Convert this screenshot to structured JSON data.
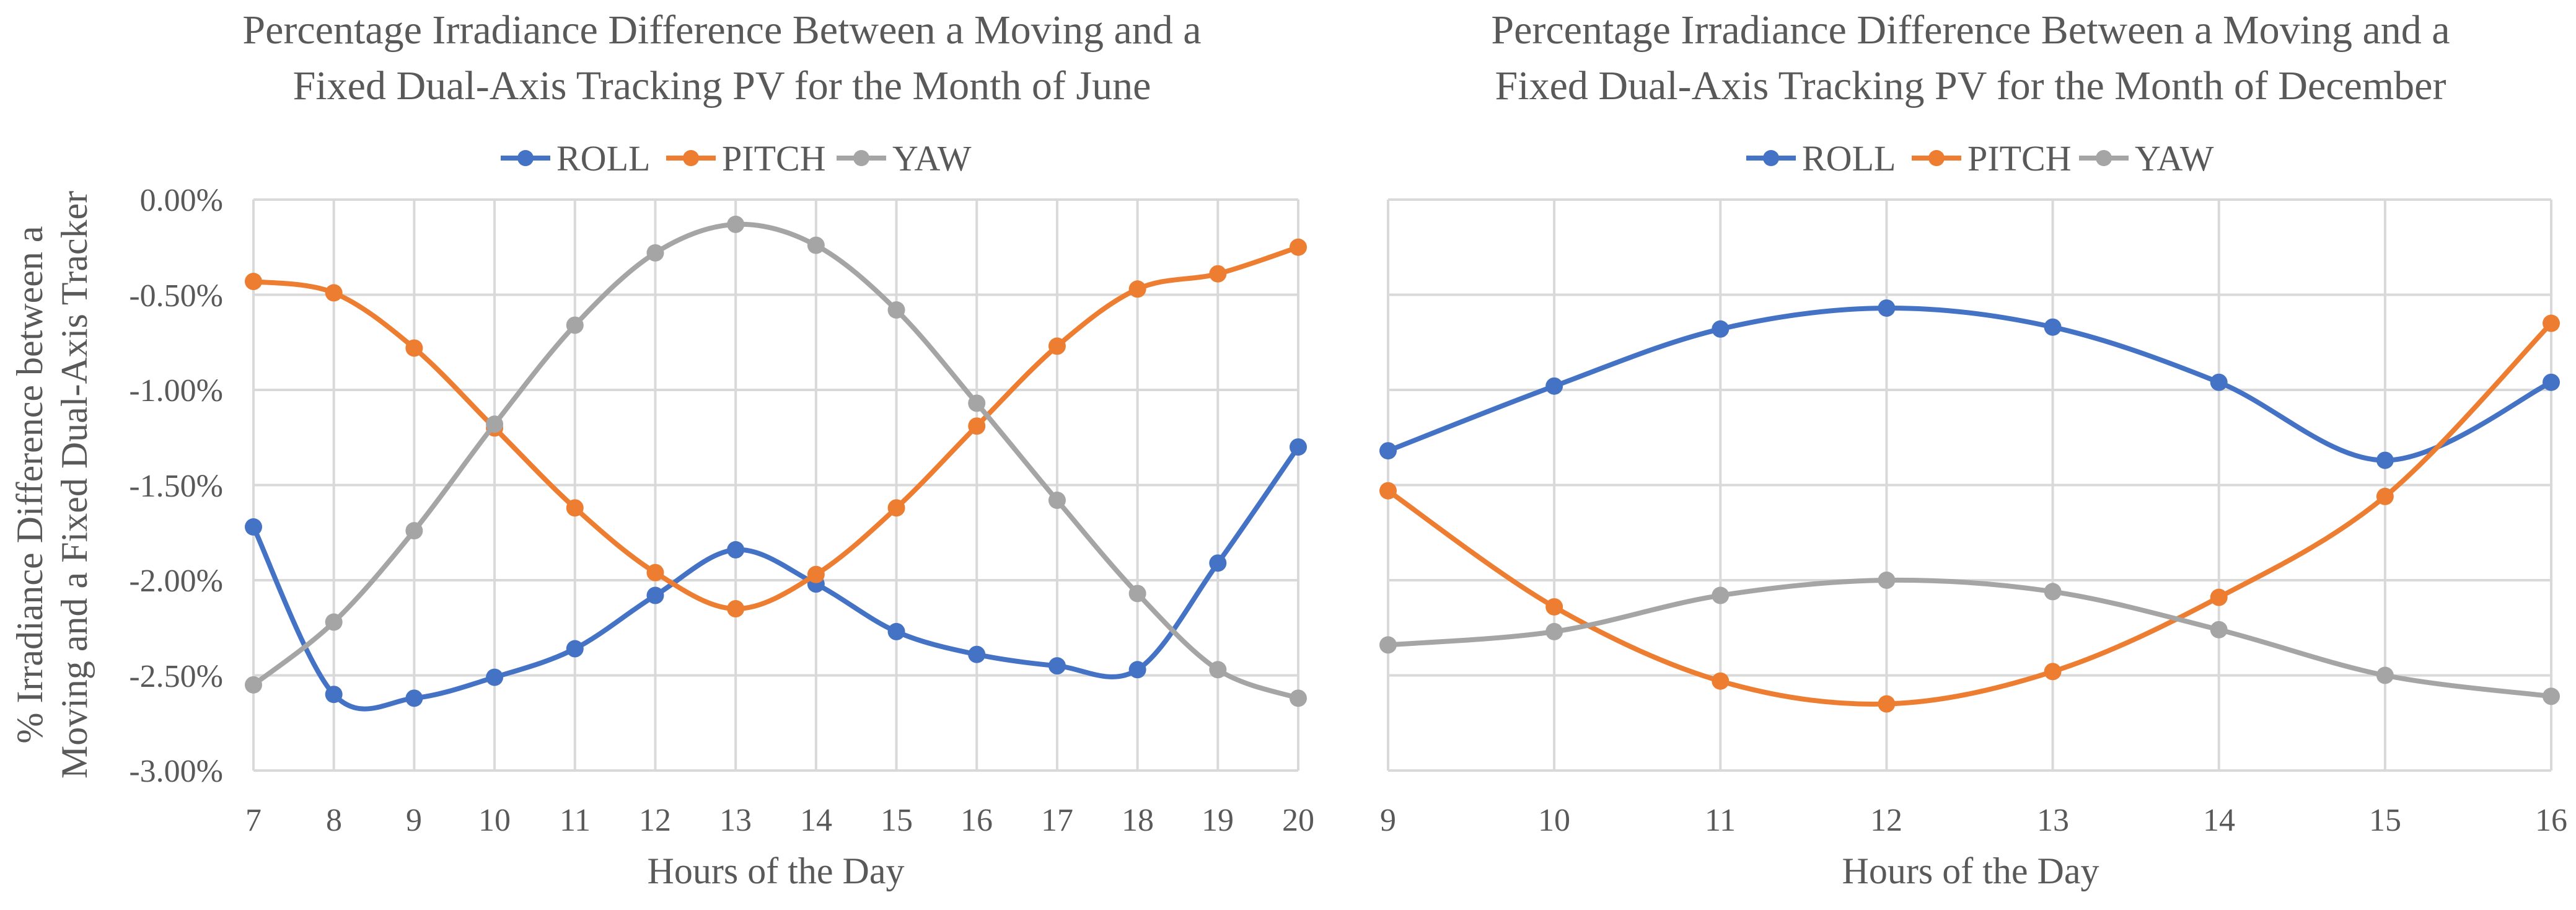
{
  "chart_data": [
    {
      "type": "line",
      "title_lines": [
        "Percentage Irradiance Difference Between a Moving and a",
        "Fixed Dual-Axis Tracking PV for the Month of June"
      ],
      "xlabel": "Hours of the Day",
      "ylabel_lines": [
        "% Irradiance Difference between a",
        "Moving and a Fixed Dual-Axis Tracker"
      ],
      "x": [
        7,
        8,
        9,
        10,
        11,
        12,
        13,
        14,
        15,
        16,
        17,
        18,
        19,
        20
      ],
      "x_tick_labels": [
        "7",
        "8",
        "9",
        "10",
        "11",
        "12",
        "13",
        "14",
        "15",
        "16",
        "17",
        "18",
        "19",
        "20"
      ],
      "ylim": [
        -3.0,
        0.0
      ],
      "y_ticks": [
        0,
        -0.5,
        -1.0,
        -1.5,
        -2.0,
        -2.5,
        -3.0
      ],
      "y_tick_labels": [
        "0.00%",
        "-0.50%",
        "-1.00%",
        "-1.50%",
        "-2.00%",
        "-2.50%",
        "-3.00%"
      ],
      "legend_position": "top-center",
      "grid": true,
      "series": [
        {
          "name": "ROLL",
          "color": "#4472c4",
          "values": [
            -1.72,
            -2.6,
            -2.62,
            -2.51,
            -2.36,
            -2.08,
            -1.84,
            -2.02,
            -2.27,
            -2.39,
            -2.45,
            -2.47,
            -1.91,
            -1.3
          ]
        },
        {
          "name": "PITCH",
          "color": "#ed7d31",
          "values": [
            -0.43,
            -0.49,
            -0.78,
            -1.2,
            -1.62,
            -1.96,
            -2.15,
            -1.97,
            -1.62,
            -1.19,
            -0.77,
            -0.47,
            -0.39,
            -0.25
          ]
        },
        {
          "name": "YAW",
          "color": "#a5a5a5",
          "values": [
            -2.55,
            -2.22,
            -1.74,
            -1.18,
            -0.66,
            -0.28,
            -0.13,
            -0.24,
            -0.58,
            -1.07,
            -1.58,
            -2.07,
            -2.47,
            -2.62
          ]
        }
      ]
    },
    {
      "type": "line",
      "title_lines": [
        "Percentage Irradiance Difference Between a Moving and a",
        "Fixed Dual-Axis Tracking PV for the Month of December"
      ],
      "xlabel": "Hours of the Day",
      "x": [
        9,
        10,
        11,
        12,
        13,
        14,
        15,
        16
      ],
      "x_tick_labels": [
        "9",
        "10",
        "11",
        "12",
        "13",
        "14",
        "15",
        "16"
      ],
      "ylim": [
        -3.0,
        0.0
      ],
      "y_ticks": [
        0,
        -0.5,
        -1.0,
        -1.5,
        -2.0,
        -2.5,
        -3.0
      ],
      "legend_position": "top-center",
      "grid": true,
      "series": [
        {
          "name": "ROLL",
          "color": "#4472c4",
          "values": [
            -1.32,
            -0.98,
            -0.68,
            -0.57,
            -0.67,
            -0.96,
            -1.37,
            -0.96
          ]
        },
        {
          "name": "PITCH",
          "color": "#ed7d31",
          "values": [
            -1.53,
            -2.14,
            -2.53,
            -2.65,
            -2.48,
            -2.09,
            -1.56,
            -0.65
          ]
        },
        {
          "name": "YAW",
          "color": "#a5a5a5",
          "values": [
            -2.34,
            -2.27,
            -2.08,
            -2.0,
            -2.06,
            -2.26,
            -2.5,
            -2.61
          ]
        }
      ]
    }
  ]
}
